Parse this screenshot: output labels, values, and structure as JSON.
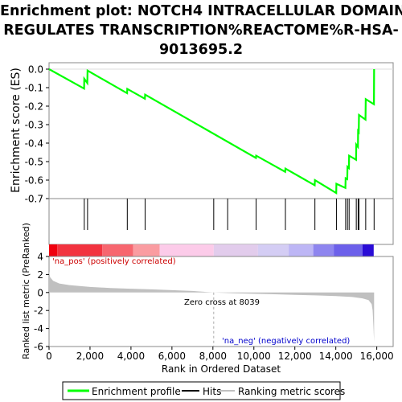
{
  "chart_data": {
    "type": "line",
    "title_lines": [
      "Enrichment plot: NOTCH4 INTRACELLULAR DOMAIN",
      "REGULATES TRANSCRIPTION%REACTOME%R-HSA-",
      "9013695.2"
    ],
    "es_panel": {
      "ylabel": "Enrichment score (ES)",
      "ylim": [
        -0.7,
        0.0
      ],
      "yticks": [
        "0.0",
        "-0.1",
        "-0.2",
        "-0.3",
        "-0.4",
        "-0.5",
        "-0.6",
        "-0.7"
      ],
      "ytick_values": [
        0.0,
        -0.1,
        -0.2,
        -0.3,
        -0.4,
        -0.5,
        -0.6,
        -0.7
      ],
      "line_color": "#00ff00",
      "points": [
        [
          0,
          0.0
        ],
        [
          1710,
          -0.105
        ],
        [
          1720,
          -0.052
        ],
        [
          1870,
          -0.075
        ],
        [
          1880,
          -0.008
        ],
        [
          3810,
          -0.13
        ],
        [
          3820,
          -0.107
        ],
        [
          4680,
          -0.16
        ],
        [
          4690,
          -0.138
        ],
        [
          10100,
          -0.48
        ],
        [
          10110,
          -0.468
        ],
        [
          11530,
          -0.555
        ],
        [
          11540,
          -0.538
        ],
        [
          12970,
          -0.628
        ],
        [
          12980,
          -0.6
        ],
        [
          14020,
          -0.67
        ],
        [
          14030,
          -0.62
        ],
        [
          14470,
          -0.642
        ],
        [
          14480,
          -0.59
        ],
        [
          14560,
          -0.595
        ],
        [
          14570,
          -0.528
        ],
        [
          14640,
          -0.535
        ],
        [
          14650,
          -0.468
        ],
        [
          14990,
          -0.49
        ],
        [
          15000,
          -0.408
        ],
        [
          15080,
          -0.42
        ],
        [
          15090,
          -0.335
        ],
        [
          15120,
          -0.34
        ],
        [
          15130,
          -0.248
        ],
        [
          15450,
          -0.273
        ],
        [
          15460,
          -0.162
        ],
        [
          15860,
          -0.19
        ],
        [
          15870,
          0.0
        ]
      ]
    },
    "hits": [
      1720,
      1880,
      3820,
      4690,
      8040,
      8720,
      10110,
      11540,
      12980,
      14030,
      14480,
      14570,
      14650,
      15000,
      15090,
      15130,
      15460,
      15870
    ],
    "heat_bands": [
      "#f0000e",
      "#f2333f",
      "#f7666f",
      "#fa9ca1",
      "#fccbe9",
      "#e2ccec",
      "#d4cdf4",
      "#bdb6f5",
      "#8e85ef",
      "#6c60ea",
      "#2a0cd6"
    ],
    "heat_band_edges": [
      0,
      400,
      2600,
      4100,
      5400,
      8040,
      10200,
      11700,
      12900,
      13900,
      15300,
      15850
    ],
    "ranked_panel": {
      "ylabel": "Ranked list metric (PreRanked)",
      "ylim": [
        -6,
        4
      ],
      "yticks": [
        "4",
        "2",
        "0",
        "-2",
        "-4",
        "-6"
      ],
      "ytick_values": [
        4,
        2,
        0,
        -2,
        -4,
        -6
      ],
      "fill_color": "#c0c0c0",
      "profile": [
        [
          0,
          2.4
        ],
        [
          50,
          1.7
        ],
        [
          200,
          1.3
        ],
        [
          500,
          1.0
        ],
        [
          1000,
          0.82
        ],
        [
          2000,
          0.62
        ],
        [
          3000,
          0.5
        ],
        [
          4000,
          0.42
        ],
        [
          5000,
          0.35
        ],
        [
          6000,
          0.26
        ],
        [
          7000,
          0.17
        ],
        [
          8039,
          0.0
        ],
        [
          9000,
          -0.08
        ],
        [
          10000,
          -0.14
        ],
        [
          11000,
          -0.2
        ],
        [
          12000,
          -0.26
        ],
        [
          13000,
          -0.32
        ],
        [
          14000,
          -0.4
        ],
        [
          14800,
          -0.5
        ],
        [
          15300,
          -0.65
        ],
        [
          15600,
          -0.85
        ],
        [
          15750,
          -1.3
        ],
        [
          15800,
          -2.0
        ],
        [
          15840,
          -3.8
        ],
        [
          15870,
          -5.5
        ]
      ],
      "label_pos": "'na_pos' (positively correlated)",
      "label_neg": "'na_neg' (negatively correlated)",
      "zero_cross_label": "Zero cross at 8039",
      "zero_cross_rank": 8039
    },
    "xlabel": "Rank in Ordered Dataset",
    "xlim": [
      0,
      16800
    ],
    "xticks": [
      "0",
      "2,000",
      "4,000",
      "6,000",
      "8,000",
      "10,000",
      "12,000",
      "14,000",
      "16,000"
    ],
    "xtick_values": [
      0,
      2000,
      4000,
      6000,
      8000,
      10000,
      12000,
      14000,
      16000
    ],
    "legend": {
      "items": [
        {
          "label": "Enrichment profile",
          "color": "#00ff00"
        },
        {
          "label": "Hits",
          "color": "#000000"
        },
        {
          "label": "Ranking metric scores",
          "color": "#c0c0c0"
        }
      ]
    }
  }
}
